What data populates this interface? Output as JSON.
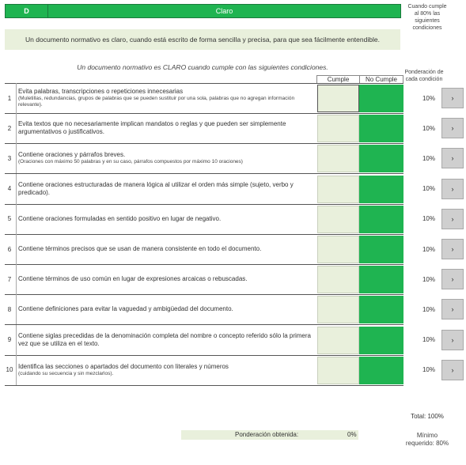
{
  "header": {
    "code": "D",
    "title": "Claro",
    "side_note": "Cuando cumple al 80% las siguientes condiciones"
  },
  "description": "Un documento normativo es claro, cuando está escrito de forma sencilla y precisa, para que sea fácilmente entendible.",
  "subtitle": "Un documento normativo es CLARO cuando cumple con las siguientes condiciones.",
  "columns": {
    "cumple": "Cumple",
    "no_cumple": "No Cumple",
    "ponderacion": "Ponderación de cada condición"
  },
  "rows": [
    {
      "num": "1",
      "text": "Evita palabras, transcripciones o repeticiones innecesarias",
      "sub": "(Muletillas, redundancias, grupos de palabras que se pueden sustituir por una sola, palabras que no agregan información relevante).",
      "pct": "10%",
      "btn": "›"
    },
    {
      "num": "2",
      "text": "Evita textos que no necesariamente implican mandatos o reglas y que pueden ser simplemente argumentativos o justificativos.",
      "sub": "",
      "pct": "10%",
      "btn": "›"
    },
    {
      "num": "3",
      "text": "Contiene oraciones y párrafos breves.",
      "sub": "(Oraciones con máximo 50 palabras y en su caso, párrafos compuestos por máximo 10 oraciones)",
      "pct": "10%",
      "btn": "›"
    },
    {
      "num": "4",
      "text": "Contiene oraciones estructuradas de manera lógica al utilizar el orden más simple (sujeto, verbo y predicado).",
      "sub": "",
      "pct": "10%",
      "btn": "›"
    },
    {
      "num": "5",
      "text": "Contiene oraciones formuladas en sentido positivo en lugar de negativo.",
      "sub": "",
      "pct": "10%",
      "btn": "›"
    },
    {
      "num": "6",
      "text": "Contiene términos precisos que se usan de manera consistente en todo el documento.",
      "sub": "",
      "pct": "10%",
      "btn": "›"
    },
    {
      "num": "7",
      "text": "Contiene términos de uso común en lugar de expresiones arcaicas o rebuscadas.",
      "sub": "",
      "pct": "10%",
      "btn": "›"
    },
    {
      "num": "8",
      "text": "Contiene definiciones para evitar la vaguedad y ambigüedad del documento.",
      "sub": "",
      "pct": "10%",
      "btn": "›"
    },
    {
      "num": "9",
      "text": "Contiene siglas precedidas de la denominación completa del nombre o concepto referido sólo la primera vez que se utiliza en el texto.",
      "sub": "",
      "pct": "10%",
      "btn": "›"
    },
    {
      "num": "10",
      "text": "Identifica las secciones o apartados del documento con literales y números",
      "sub": "(cuidando su secuencia y sin mezclarlos).",
      "pct": "10%",
      "btn": "›"
    }
  ],
  "total": "Total: 100%",
  "ponderacion_obtenida": {
    "label": "Ponderación obtenida:",
    "value": "0%"
  },
  "minimo": "Mínimo requerido: 80%",
  "colors": {
    "green": "#1fb451",
    "light_green": "#e9f0dc",
    "button_gray": "#cfcfcf"
  }
}
